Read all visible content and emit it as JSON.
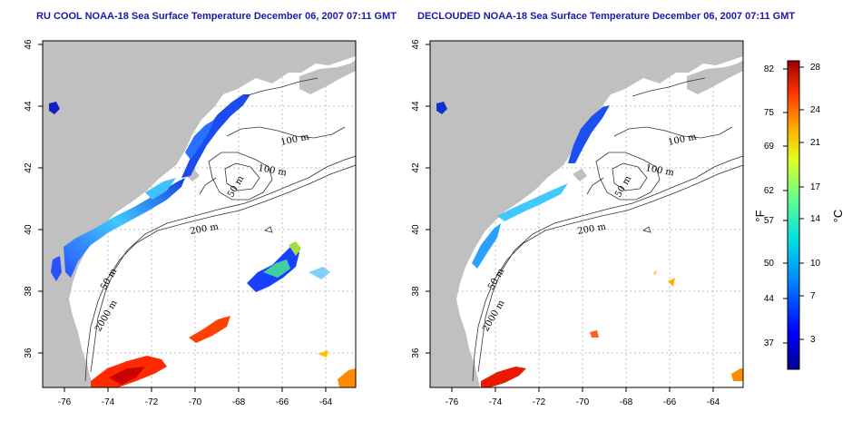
{
  "titles": {
    "left": "RU COOL NOAA-18 Sea Surface Temperature December 06, 2007 07:11 GMT",
    "right": "DECLOUDED NOAA-18 Sea Surface Temperature December 06, 2007 07:11 GMT"
  },
  "map": {
    "lon_ticks": [
      "-76",
      "-74",
      "-72",
      "-70",
      "-68",
      "-66",
      "-64"
    ],
    "lat_ticks": [
      "46",
      "44",
      "42",
      "40",
      "38",
      "36"
    ],
    "contour_labels": [
      "100 m",
      "100 m",
      "50 m",
      "200 m",
      "50 m",
      "2000 m"
    ],
    "colors": {
      "land": "#c0c0c0",
      "contour": "#333333",
      "grid": "#b0b0b0"
    }
  },
  "colorbar": {
    "fahrenheit_ticks": [
      "82",
      "75",
      "69",
      "62",
      "57",
      "50",
      "44",
      "37"
    ],
    "celsius_ticks": [
      "28",
      "24",
      "21",
      "17",
      "14",
      "10",
      "7",
      "3"
    ],
    "fahrenheit_unit": "°F",
    "celsius_unit": "°C"
  }
}
